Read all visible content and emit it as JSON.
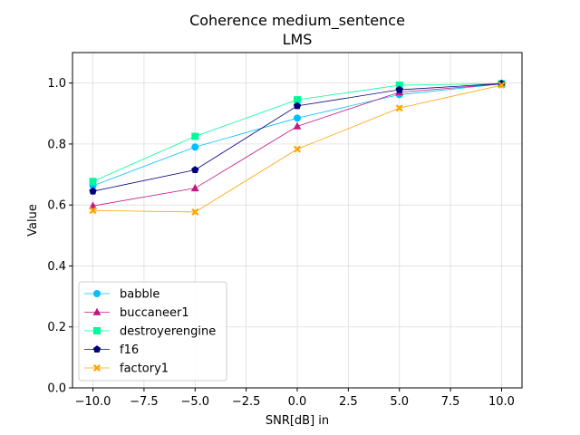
{
  "chart_data": {
    "type": "line",
    "title": "Coherence medium_sentence",
    "subtitle": "LMS",
    "xlabel": "SNR[dB] in",
    "ylabel": "Value",
    "xlim": [
      -11,
      11
    ],
    "ylim": [
      0.0,
      1.1
    ],
    "xticks": [
      -10.0,
      -7.5,
      -5.0,
      -2.5,
      0.0,
      2.5,
      5.0,
      7.5,
      10.0
    ],
    "xtick_labels": [
      "−10.0",
      "−7.5",
      "−5.0",
      "−2.5",
      "0.0",
      "2.5",
      "5.0",
      "7.5",
      "10.0"
    ],
    "yticks": [
      0.0,
      0.2,
      0.4,
      0.6,
      0.8,
      1.0
    ],
    "ytick_labels": [
      "0.0",
      "0.2",
      "0.4",
      "0.6",
      "0.8",
      "1.0"
    ],
    "grid": true,
    "legend_position": "lower-left",
    "x": [
      -10,
      -5,
      0,
      5,
      10
    ],
    "series": [
      {
        "name": "babble",
        "color": "#00bfff",
        "marker": "circle",
        "values": [
          0.663,
          0.79,
          0.885,
          0.962,
          0.997
        ]
      },
      {
        "name": "buccaneer1",
        "color": "#c71585",
        "marker": "triangle",
        "values": [
          0.597,
          0.655,
          0.858,
          0.97,
          0.997
        ]
      },
      {
        "name": "destroyerengine",
        "color": "#00fa9a",
        "marker": "square",
        "values": [
          0.677,
          0.825,
          0.945,
          0.993,
          0.998
        ]
      },
      {
        "name": "f16",
        "color": "#000080",
        "marker": "pentagon",
        "values": [
          0.645,
          0.715,
          0.925,
          0.978,
          0.998
        ]
      },
      {
        "name": "factory1",
        "color": "#ffa500",
        "marker": "x",
        "values": [
          0.582,
          0.577,
          0.783,
          0.918,
          0.993
        ]
      }
    ]
  }
}
